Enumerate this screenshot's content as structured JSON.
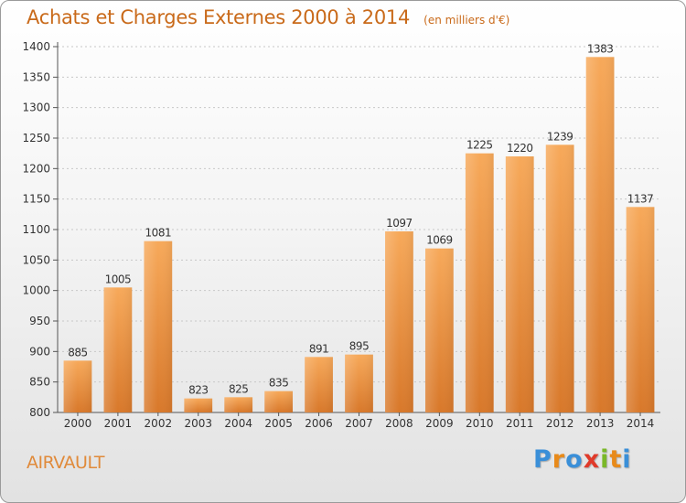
{
  "title": "Achats et Charges Externes 2000 à 2014",
  "subtitle": "(en milliers d'€)",
  "location": "AIRVAULT",
  "logo": {
    "letters": [
      "P",
      "r",
      "o",
      "x",
      "i",
      "t",
      "i"
    ],
    "colors": [
      "#3a8fd8",
      "#e88a1a",
      "#3a8fd8",
      "#e03a2a",
      "#7ab828",
      "#e88a1a",
      "#3a8fd8"
    ]
  },
  "colors": {
    "bar_light": "#f7a95a",
    "bar_dark": "#d8782a",
    "text_accent": "#c96a1a",
    "grid": "#c8c8c8"
  },
  "chart_data": {
    "type": "bar",
    "title": "Achats et Charges Externes 2000 à 2014",
    "subtitle": "(en milliers d'€)",
    "xlabel": "",
    "ylabel": "",
    "categories": [
      "2000",
      "2001",
      "2002",
      "2003",
      "2004",
      "2005",
      "2006",
      "2007",
      "2008",
      "2009",
      "2010",
      "2011",
      "2012",
      "2013",
      "2014"
    ],
    "values": [
      885,
      1005,
      1081,
      823,
      825,
      835,
      891,
      895,
      1097,
      1069,
      1225,
      1220,
      1239,
      1383,
      1137
    ],
    "ylim": [
      800,
      1400
    ],
    "yticks": [
      800,
      850,
      900,
      950,
      1000,
      1050,
      1100,
      1150,
      1200,
      1250,
      1300,
      1350,
      1400
    ],
    "grid": true,
    "data_labels": true
  }
}
